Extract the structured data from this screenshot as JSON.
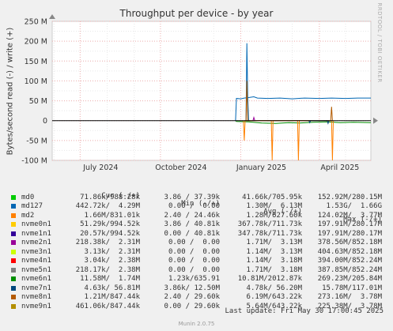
{
  "title": "Throughput per device - by year",
  "ylabel": "Bytes/second read (-) / write (+)",
  "side_text": "RRDTOOL / TOBI OETIKER",
  "legend_headers": {
    "cur": "Cur (-/+)",
    "min": "Min (-/+)",
    "avg": "Avg (-/+)",
    "max": "Max (-/+)"
  },
  "rows": [
    {
      "name": "md0",
      "color": "#00cc00",
      "cur": "71.86k/988.28k",
      "min": "3.86 / 37.39k",
      "avg": "41.66k/705.95k",
      "max": "152.92M/280.15M"
    },
    {
      "name": "md127",
      "color": "#0066b3",
      "cur": "442.72k/  4.29M",
      "min": "0.00 /  0.00",
      "avg": "1.30M/  6.13M",
      "max": "1.53G/  1.66G"
    },
    {
      "name": "md2",
      "color": "#ff8000",
      "cur": "1.66M/831.01k",
      "min": "2.40 / 24.46k",
      "avg": "1.28M/627.60k",
      "max": "124.02M/  3.77M"
    },
    {
      "name": "nvme0n1",
      "color": "#ffcc00",
      "cur": "51.29k/994.52k",
      "min": "3.86 / 40.81k",
      "avg": "367.78k/711.73k",
      "max": "197.91M/280.17M"
    },
    {
      "name": "nvme1n1",
      "color": "#330099",
      "cur": "20.57k/994.52k",
      "min": "0.00 / 40.81k",
      "avg": "347.78k/711.73k",
      "max": "197.91M/280.17M"
    },
    {
      "name": "nvme2n1",
      "color": "#990099",
      "cur": "218.38k/  2.31M",
      "min": "0.00 /  0.00",
      "avg": "1.71M/  3.13M",
      "max": "378.56M/852.18M"
    },
    {
      "name": "nvme3n1",
      "color": "#ccff00",
      "cur": "3.13k/  2.31M",
      "min": "0.00 /  0.00",
      "avg": "1.14M/  3.13M",
      "max": "404.63M/852.18M"
    },
    {
      "name": "nvme4n1",
      "color": "#ff0000",
      "cur": "3.04k/  2.38M",
      "min": "0.00 /  0.00",
      "avg": "1.14M/  3.18M",
      "max": "394.00M/852.24M"
    },
    {
      "name": "nvme5n1",
      "color": "#808080",
      "cur": "218.17k/  2.38M",
      "min": "0.00 /  0.00",
      "avg": "1.71M/  3.18M",
      "max": "387.85M/852.24M"
    },
    {
      "name": "nvme6n1",
      "color": "#008f00",
      "cur": "11.58M/  1.74M",
      "min": "1.23k/635.91",
      "avg": "10.81M/2012.87k",
      "max": "269.23M/205.84M"
    },
    {
      "name": "nvme7n1",
      "color": "#00487d",
      "cur": "4.63k/ 56.81M",
      "min": "3.86k/ 12.50M",
      "avg": "4.78k/ 56.20M",
      "max": "15.78M/117.01M"
    },
    {
      "name": "nvme8n1",
      "color": "#b35a00",
      "cur": "1.21M/847.44k",
      "min": "2.40 / 29.60k",
      "avg": "6.19M/643.22k",
      "max": "273.16M/  3.78M"
    },
    {
      "name": "nvme9n1",
      "color": "#b38f00",
      "cur": "461.06k/847.44k",
      "min": "0.00 / 29.60k",
      "avg": "5.64M/643.22k",
      "max": "225.38M/  3.78M"
    }
  ],
  "last_update": "Last update: Fri May 30 17:00:45 2025",
  "footer": "Munin 2.0.75",
  "chart_data": {
    "type": "line",
    "title": "Throughput per device - by year",
    "ylabel": "Bytes/second read (-) / write (+)",
    "ylim": [
      -100000000,
      250000000
    ],
    "yticks": [
      {
        "v": 250000000,
        "label": "250 M"
      },
      {
        "v": 200000000,
        "label": "200 M"
      },
      {
        "v": 150000000,
        "label": "150 M"
      },
      {
        "v": 100000000,
        "label": "100 M"
      },
      {
        "v": 50000000,
        "label": "50 M"
      },
      {
        "v": 0,
        "label": "0"
      },
      {
        "v": -50000000,
        "label": "-50 M"
      },
      {
        "v": -100000000,
        "label": "-100 M"
      }
    ],
    "xlim": [
      "2024-05-30",
      "2025-05-30"
    ],
    "xticks": [
      {
        "date": "2024-07-01",
        "label": "July 2024"
      },
      {
        "date": "2024-10-01",
        "label": "October 2024"
      },
      {
        "date": "2025-01-01",
        "label": "January 2025"
      },
      {
        "date": "2025-04-01",
        "label": "April 2025"
      }
    ],
    "grid": true,
    "series": [
      {
        "name": "md127",
        "color": "#0066b3",
        "points": [
          [
            "2024-12-26",
            0
          ],
          [
            "2024-12-27",
            56000000
          ],
          [
            "2025-01-01",
            55000000
          ],
          [
            "2025-01-05",
            57000000
          ],
          [
            "2025-01-10",
            58000000
          ],
          [
            "2025-01-16",
            60000000
          ],
          [
            "2025-01-20",
            57000000
          ],
          [
            "2025-02-01",
            56000000
          ],
          [
            "2025-02-15",
            57000000
          ],
          [
            "2025-03-01",
            55000000
          ],
          [
            "2025-03-15",
            57000000
          ],
          [
            "2025-04-01",
            56000000
          ],
          [
            "2025-04-15",
            57000000
          ],
          [
            "2025-05-01",
            56000000
          ],
          [
            "2025-05-15",
            57000000
          ],
          [
            "2025-05-30",
            57000000
          ]
        ]
      },
      {
        "name": "md127",
        "color": "#0066b3",
        "points": [
          [
            "2025-01-07",
            0
          ],
          [
            "2025-01-08",
            195000000
          ],
          [
            "2025-01-09",
            60000000
          ],
          [
            "2025-01-10",
            0
          ]
        ]
      },
      {
        "name": "nvme6n1",
        "color": "#008f00",
        "points": [
          [
            "2024-12-26",
            0
          ],
          [
            "2024-12-27",
            -2000000
          ],
          [
            "2025-01-10",
            -3000000
          ],
          [
            "2025-01-25",
            -6000000
          ],
          [
            "2025-02-10",
            -7000000
          ],
          [
            "2025-02-25",
            -5000000
          ],
          [
            "2025-03-10",
            -6000000
          ],
          [
            "2025-03-25",
            -4000000
          ],
          [
            "2025-04-10",
            -3000000
          ],
          [
            "2025-04-25",
            -5000000
          ],
          [
            "2025-05-10",
            -4000000
          ],
          [
            "2025-05-30",
            -5000000
          ]
        ]
      },
      {
        "name": "md2",
        "color": "#ff8000",
        "points": [
          [
            "2025-01-04",
            0
          ],
          [
            "2025-01-05",
            -50000000
          ],
          [
            "2025-01-06",
            0
          ],
          [
            "2025-02-05",
            0
          ],
          [
            "2025-02-06",
            -100000000
          ],
          [
            "2025-02-07",
            0
          ],
          [
            "2025-03-07",
            0
          ],
          [
            "2025-03-08",
            -100000000
          ],
          [
            "2025-03-09",
            0
          ],
          [
            "2025-04-15",
            0
          ],
          [
            "2025-04-16",
            -100000000
          ],
          [
            "2025-04-17",
            0
          ]
        ]
      },
      {
        "name": "nvme8n1",
        "color": "#b35a00",
        "points": [
          [
            "2025-01-07",
            0
          ],
          [
            "2025-01-08",
            100000000
          ],
          [
            "2025-01-09",
            0
          ],
          [
            "2025-04-14",
            0
          ],
          [
            "2025-04-15",
            35000000
          ],
          [
            "2025-04-16",
            0
          ]
        ]
      },
      {
        "name": "nvme2n1",
        "color": "#990099",
        "points": [
          [
            "2025-01-15",
            0
          ],
          [
            "2025-01-16",
            8000000
          ],
          [
            "2025-01-17",
            0
          ]
        ]
      },
      {
        "name": "nvme7n1",
        "color": "#00487d",
        "points": [
          [
            "2025-03-20",
            0
          ],
          [
            "2025-03-21",
            -5000000
          ],
          [
            "2025-03-22",
            0
          ],
          [
            "2025-04-10",
            0
          ],
          [
            "2025-04-11",
            -7000000
          ],
          [
            "2025-04-12",
            0
          ]
        ]
      }
    ]
  }
}
